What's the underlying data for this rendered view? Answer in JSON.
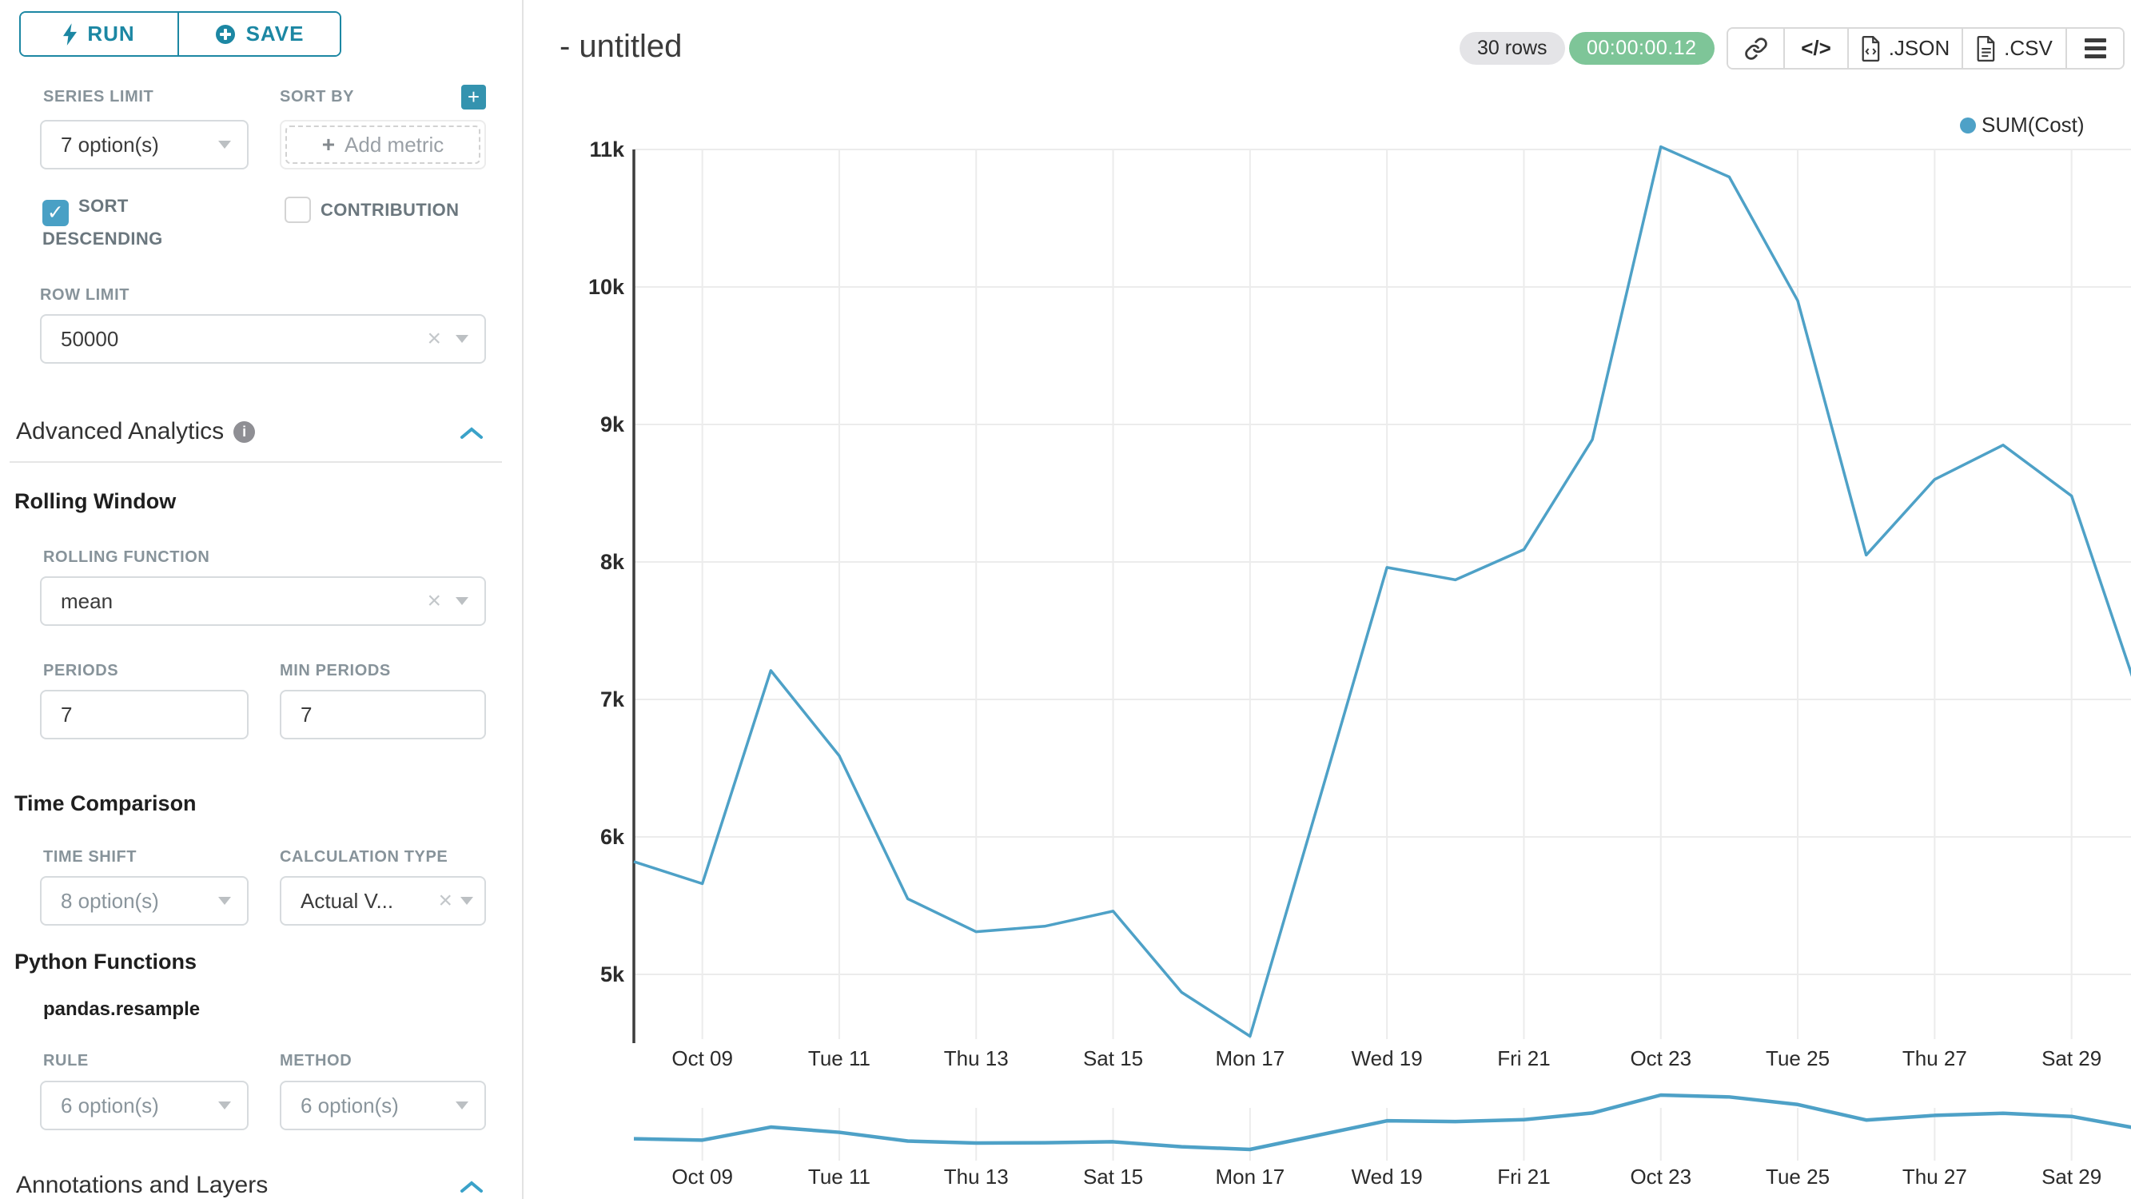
{
  "panel": {
    "run_label": "RUN",
    "save_label": "SAVE",
    "series_limit_label": "SERIES LIMIT",
    "series_limit_value": "7 option(s)",
    "sort_by_label": "SORT BY",
    "plus_button_label": "+",
    "add_metric_plus": "+",
    "add_metric_label": "Add metric",
    "sort_descending_label": "SORT DESCENDING",
    "sort_descending_check": "✓",
    "contribution_label": "CONTRIBUTION",
    "row_limit_label": "ROW LIMIT",
    "row_limit_value": "50000",
    "advanced_analytics_title": "Advanced Analytics",
    "info_icon_glyph": "i",
    "rolling_window_title": "Rolling Window",
    "rolling_function_label": "ROLLING FUNCTION",
    "rolling_function_value": "mean",
    "periods_label": "PERIODS",
    "periods_value": "7",
    "min_periods_label": "MIN PERIODS",
    "min_periods_value": "7",
    "time_comparison_title": "Time Comparison",
    "time_shift_label": "TIME SHIFT",
    "time_shift_value": "8 option(s)",
    "calculation_type_label": "CALCULATION TYPE",
    "calculation_type_value": "Actual V...",
    "python_functions_title": "Python Functions",
    "pandas_resample_title": "pandas.resample",
    "rule_label": "RULE",
    "rule_value": "6 option(s)",
    "method_label": "METHOD",
    "method_value": "6 option(s)",
    "annotations_title": "Annotations and Layers",
    "clear_glyph": "×"
  },
  "header": {
    "title": "- untitled",
    "row_count": "30 rows",
    "timer": "00:00:00.12",
    "code_button_glyph": "</>",
    "export_json_label": ".JSON",
    "export_csv_label": ".CSV"
  },
  "legend": {
    "label": "SUM(Cost)",
    "color": "#4ea1c7"
  },
  "colors": {
    "accent_teal": "#1c87a3",
    "checkbox_blue": "#49a0c5",
    "timer_green": "#7ec598",
    "line_blue": "#4ea1c7",
    "gridline": "#ececec",
    "axis_line": "#3d3d3d"
  },
  "chart_data": {
    "type": "line",
    "title": "- untitled",
    "xlabel": "",
    "ylabel": "",
    "grid": true,
    "legend_position": "top-right",
    "has_mini_preview": true,
    "color": "#4ea1c7",
    "ylim": [
      4400,
      11150
    ],
    "x": [
      "Oct 08",
      "Oct 09",
      "Oct 10",
      "Oct 11",
      "Oct 12",
      "Oct 13",
      "Oct 14",
      "Oct 15",
      "Oct 16",
      "Oct 17",
      "Oct 18",
      "Oct 19",
      "Oct 20",
      "Oct 21",
      "Oct 22",
      "Oct 23",
      "Oct 24",
      "Oct 25",
      "Oct 26",
      "Oct 27",
      "Oct 28",
      "Oct 29",
      "Oct 30"
    ],
    "series": [
      {
        "name": "SUM(Cost)",
        "values": [
          5820,
          5660,
          7210,
          6590,
          5550,
          5310,
          5350,
          5460,
          4870,
          4550,
          6250,
          7960,
          7870,
          8090,
          8890,
          11020,
          10800,
          9900,
          8050,
          8600,
          8850,
          8480,
          7000
        ]
      }
    ],
    "x_tick_labels": [
      "Oct 09",
      "Tue 11",
      "Thu 13",
      "Sat 15",
      "Mon 17",
      "Wed 19",
      "Fri 21",
      "Oct 23",
      "Tue 25",
      "Thu 27",
      "Sat 29"
    ],
    "y_ticks": [
      {
        "label": "5k",
        "value": 5000
      },
      {
        "label": "6k",
        "value": 6000
      },
      {
        "label": "7k",
        "value": 7000
      },
      {
        "label": "8k",
        "value": 8000
      },
      {
        "label": "9k",
        "value": 9000
      },
      {
        "label": "10k",
        "value": 10000
      },
      {
        "label": "11k",
        "value": 11000
      }
    ]
  }
}
